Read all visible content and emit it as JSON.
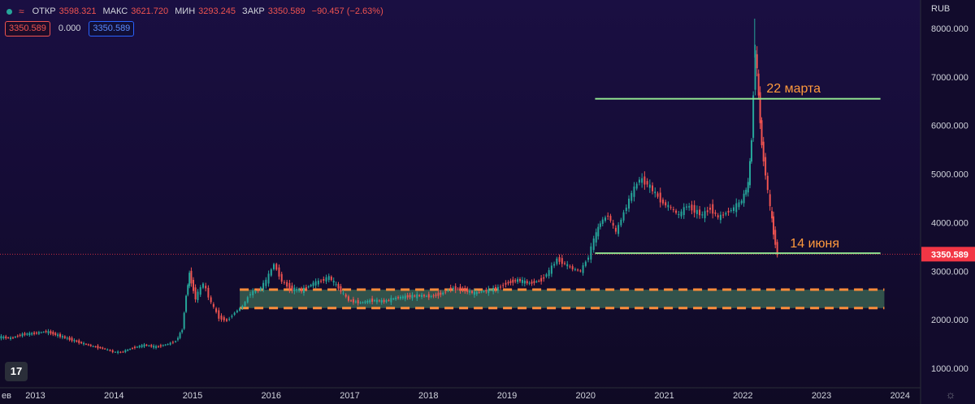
{
  "legend": {
    "open_label": "ОТКР",
    "open": "3598.321",
    "high_label": "МАКС",
    "high": "3621.720",
    "low_label": "МИН",
    "low": "3293.245",
    "close_label": "ЗАКР",
    "close": "3350.589",
    "change": "−90.457 (−2.63%)"
  },
  "badges": {
    "price": "3350.589",
    "zero": "0.000",
    "price2": "3350.589"
  },
  "currency": "RUB",
  "last_price_label": "3350.589",
  "tv_logo": "17",
  "colors": {
    "up": "#26a69a",
    "down": "#ef5350",
    "level": "#8fe08f",
    "annotation": "#ff9a3c",
    "zone_fill": "#3d6b56",
    "zone_border": "#ff8c3a",
    "price_tag": "#f23645"
  },
  "chart_data": {
    "type": "candlestick",
    "x_ticks": [
      "ев",
      "2013",
      "2014",
      "2015",
      "2016",
      "2017",
      "2018",
      "2019",
      "2020",
      "2021",
      "2022",
      "2023",
      "2024"
    ],
    "y_ticks": [
      "1000.000",
      "2000.000",
      "3000.000",
      "4000.000",
      "5000.000",
      "6000.000",
      "7000.000",
      "8000.000"
    ],
    "ylim": [
      600,
      8350
    ],
    "xlim": [
      2012.55,
      2024.25
    ],
    "last_price": 3350.589,
    "series": [
      {
        "x": 2012.55,
        "y": 1650
      },
      {
        "x": 2012.7,
        "y": 1620
      },
      {
        "x": 2012.85,
        "y": 1700
      },
      {
        "x": 2013.0,
        "y": 1720
      },
      {
        "x": 2013.15,
        "y": 1760
      },
      {
        "x": 2013.3,
        "y": 1680
      },
      {
        "x": 2013.45,
        "y": 1600
      },
      {
        "x": 2013.6,
        "y": 1520
      },
      {
        "x": 2013.75,
        "y": 1450
      },
      {
        "x": 2013.9,
        "y": 1400
      },
      {
        "x": 2014.0,
        "y": 1340
      },
      {
        "x": 2014.1,
        "y": 1330
      },
      {
        "x": 2014.25,
        "y": 1420
      },
      {
        "x": 2014.4,
        "y": 1480
      },
      {
        "x": 2014.55,
        "y": 1440
      },
      {
        "x": 2014.7,
        "y": 1500
      },
      {
        "x": 2014.8,
        "y": 1560
      },
      {
        "x": 2014.88,
        "y": 1800
      },
      {
        "x": 2014.93,
        "y": 2500
      },
      {
        "x": 2014.97,
        "y": 2950
      },
      {
        "x": 2015.05,
        "y": 2450
      },
      {
        "x": 2015.15,
        "y": 2750
      },
      {
        "x": 2015.25,
        "y": 2350
      },
      {
        "x": 2015.35,
        "y": 2050
      },
      {
        "x": 2015.45,
        "y": 1980
      },
      {
        "x": 2015.55,
        "y": 2150
      },
      {
        "x": 2015.65,
        "y": 2280
      },
      {
        "x": 2015.75,
        "y": 2550
      },
      {
        "x": 2015.85,
        "y": 2600
      },
      {
        "x": 2015.95,
        "y": 2800
      },
      {
        "x": 2016.05,
        "y": 3150
      },
      {
        "x": 2016.15,
        "y": 2800
      },
      {
        "x": 2016.25,
        "y": 2650
      },
      {
        "x": 2016.4,
        "y": 2600
      },
      {
        "x": 2016.55,
        "y": 2750
      },
      {
        "x": 2016.65,
        "y": 2800
      },
      {
        "x": 2016.75,
        "y": 2880
      },
      {
        "x": 2016.9,
        "y": 2600
      },
      {
        "x": 2017.0,
        "y": 2400
      },
      {
        "x": 2017.15,
        "y": 2350
      },
      {
        "x": 2017.3,
        "y": 2400
      },
      {
        "x": 2017.45,
        "y": 2380
      },
      {
        "x": 2017.6,
        "y": 2450
      },
      {
        "x": 2017.75,
        "y": 2480
      },
      {
        "x": 2017.9,
        "y": 2500
      },
      {
        "x": 2018.05,
        "y": 2480
      },
      {
        "x": 2018.2,
        "y": 2550
      },
      {
        "x": 2018.3,
        "y": 2650
      },
      {
        "x": 2018.45,
        "y": 2620
      },
      {
        "x": 2018.6,
        "y": 2550
      },
      {
        "x": 2018.75,
        "y": 2600
      },
      {
        "x": 2018.9,
        "y": 2650
      },
      {
        "x": 2019.0,
        "y": 2750
      },
      {
        "x": 2019.15,
        "y": 2820
      },
      {
        "x": 2019.3,
        "y": 2750
      },
      {
        "x": 2019.45,
        "y": 2820
      },
      {
        "x": 2019.55,
        "y": 3000
      },
      {
        "x": 2019.65,
        "y": 3250
      },
      {
        "x": 2019.75,
        "y": 3150
      },
      {
        "x": 2019.85,
        "y": 3050
      },
      {
        "x": 2019.95,
        "y": 3000
      },
      {
        "x": 2020.05,
        "y": 3300
      },
      {
        "x": 2020.12,
        "y": 3650
      },
      {
        "x": 2020.2,
        "y": 4000
      },
      {
        "x": 2020.3,
        "y": 4150
      },
      {
        "x": 2020.4,
        "y": 3800
      },
      {
        "x": 2020.5,
        "y": 4200
      },
      {
        "x": 2020.6,
        "y": 4600
      },
      {
        "x": 2020.7,
        "y": 4900
      },
      {
        "x": 2020.8,
        "y": 4800
      },
      {
        "x": 2020.9,
        "y": 4600
      },
      {
        "x": 2021.0,
        "y": 4400
      },
      {
        "x": 2021.1,
        "y": 4300
      },
      {
        "x": 2021.2,
        "y": 4150
      },
      {
        "x": 2021.3,
        "y": 4350
      },
      {
        "x": 2021.4,
        "y": 4250
      },
      {
        "x": 2021.5,
        "y": 4150
      },
      {
        "x": 2021.6,
        "y": 4300
      },
      {
        "x": 2021.7,
        "y": 4100
      },
      {
        "x": 2021.8,
        "y": 4200
      },
      {
        "x": 2021.9,
        "y": 4300
      },
      {
        "x": 2022.0,
        "y": 4450
      },
      {
        "x": 2022.08,
        "y": 4800
      },
      {
        "x": 2022.12,
        "y": 5700
      },
      {
        "x": 2022.17,
        "y": 7600
      },
      {
        "x": 2022.21,
        "y": 6600
      },
      {
        "x": 2022.25,
        "y": 5600
      },
      {
        "x": 2022.3,
        "y": 5000
      },
      {
        "x": 2022.36,
        "y": 4300
      },
      {
        "x": 2022.4,
        "y": 3800
      },
      {
        "x": 2022.45,
        "y": 3350
      }
    ]
  },
  "annotations": {
    "high_label": "22 марта",
    "low_label": "14 июня",
    "high_level": 6550,
    "low_level": 3370,
    "high_line_x": [
      2020.12,
      2023.75
    ],
    "low_line_x": [
      2020.12,
      2023.75
    ],
    "zone": {
      "x": [
        2015.6,
        2023.8
      ],
      "y": [
        2240,
        2620
      ]
    }
  }
}
